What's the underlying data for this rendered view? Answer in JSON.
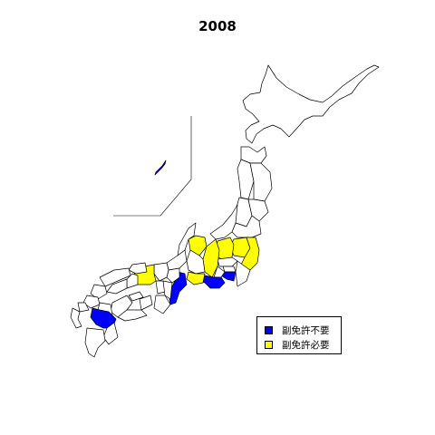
{
  "title": "2008",
  "legend": {
    "items": [
      {
        "label": "副免許不要",
        "color": "#0000ff"
      },
      {
        "label": "副免許必要",
        "color": "#ffff00"
      }
    ]
  },
  "colors": {
    "not_required": "#0000ff",
    "required": "#ffff00",
    "none": "#ffffff",
    "border": "#000000"
  },
  "prefectures_not_required": [
    "Shizuoka",
    "Kanagawa",
    "Mie",
    "Kumamoto",
    "Okinawa"
  ],
  "prefectures_required": [
    "Toyama",
    "Nagano",
    "Gunma",
    "Tochigi",
    "Ibaraki",
    "Hyogo",
    "Aichi"
  ]
}
